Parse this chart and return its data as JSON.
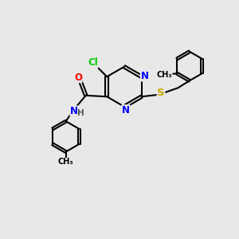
{
  "bg_color": "#e8e8e8",
  "atom_colors": {
    "Cl": "#00cc00",
    "N": "#0000ff",
    "O": "#ff0000",
    "S": "#ccaa00",
    "C": "#000000",
    "H": "#777777"
  },
  "bond_width": 1.5,
  "font_size": 8.5,
  "fig_size": [
    3.0,
    3.0
  ],
  "dpi": 100
}
